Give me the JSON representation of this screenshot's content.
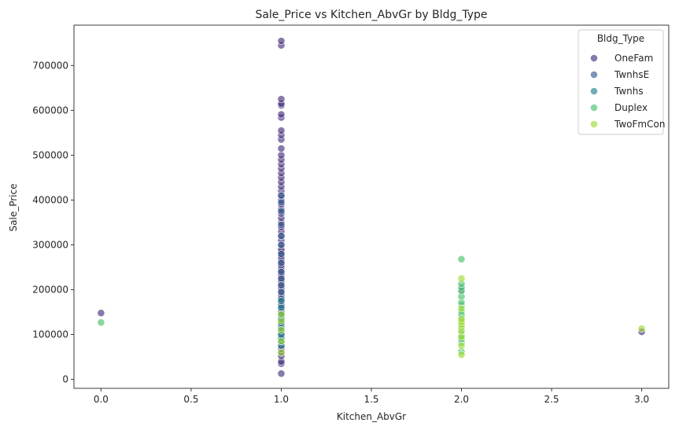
{
  "chart_data": {
    "type": "scatter",
    "title": "Sale_Price vs Kitchen_AbvGr by Bldg_Type",
    "xlabel": "Kitchen_AbvGr",
    "ylabel": "Sale_Price",
    "xlim": [
      -0.15,
      3.15
    ],
    "ylim": [
      -20000,
      790000
    ],
    "xticks": [
      0.0,
      0.5,
      1.0,
      1.5,
      2.0,
      2.5,
      3.0
    ],
    "xtick_labels": [
      "0.0",
      "0.5",
      "1.0",
      "1.5",
      "2.0",
      "2.5",
      "3.0"
    ],
    "yticks": [
      0,
      100000,
      200000,
      300000,
      400000,
      500000,
      600000,
      700000
    ],
    "ytick_labels": [
      "0",
      "100000",
      "200000",
      "300000",
      "400000",
      "500000",
      "600000",
      "700000"
    ],
    "grid": false,
    "legend": {
      "title": "Bldg_Type",
      "placement": "top-right"
    },
    "series": [
      {
        "name": "OneFam",
        "color": "#46327e",
        "points": [
          [
            0,
            148000
          ],
          [
            1,
            13000
          ],
          [
            1,
            35000
          ],
          [
            1,
            40000
          ],
          [
            1,
            52000
          ],
          [
            1,
            60000
          ],
          [
            1,
            68000
          ],
          [
            1,
            75000
          ],
          [
            1,
            82000
          ],
          [
            1,
            88000
          ],
          [
            1,
            95000
          ],
          [
            1,
            100000
          ],
          [
            1,
            105000
          ],
          [
            1,
            110000
          ],
          [
            1,
            115000
          ],
          [
            1,
            120000
          ],
          [
            1,
            125000
          ],
          [
            1,
            130000
          ],
          [
            1,
            135000
          ],
          [
            1,
            140000
          ],
          [
            1,
            145000
          ],
          [
            1,
            150000
          ],
          [
            1,
            155000
          ],
          [
            1,
            160000
          ],
          [
            1,
            165000
          ],
          [
            1,
            170000
          ],
          [
            1,
            175000
          ],
          [
            1,
            180000
          ],
          [
            1,
            185000
          ],
          [
            1,
            190000
          ],
          [
            1,
            195000
          ],
          [
            1,
            200000
          ],
          [
            1,
            205000
          ],
          [
            1,
            210000
          ],
          [
            1,
            215000
          ],
          [
            1,
            220000
          ],
          [
            1,
            225000
          ],
          [
            1,
            230000
          ],
          [
            1,
            235000
          ],
          [
            1,
            240000
          ],
          [
            1,
            245000
          ],
          [
            1,
            250000
          ],
          [
            1,
            255000
          ],
          [
            1,
            260000
          ],
          [
            1,
            265000
          ],
          [
            1,
            270000
          ],
          [
            1,
            275000
          ],
          [
            1,
            280000
          ],
          [
            1,
            285000
          ],
          [
            1,
            290000
          ],
          [
            1,
            300000
          ],
          [
            1,
            310000
          ],
          [
            1,
            320000
          ],
          [
            1,
            330000
          ],
          [
            1,
            340000
          ],
          [
            1,
            350000
          ],
          [
            1,
            360000
          ],
          [
            1,
            370000
          ],
          [
            1,
            380000
          ],
          [
            1,
            390000
          ],
          [
            1,
            400000
          ],
          [
            1,
            410000
          ],
          [
            1,
            420000
          ],
          [
            1,
            430000
          ],
          [
            1,
            440000
          ],
          [
            1,
            450000
          ],
          [
            1,
            460000
          ],
          [
            1,
            470000
          ],
          [
            1,
            480000
          ],
          [
            1,
            490000
          ],
          [
            1,
            500000
          ],
          [
            1,
            515000
          ],
          [
            1,
            535000
          ],
          [
            1,
            545000
          ],
          [
            1,
            555000
          ],
          [
            1,
            584000
          ],
          [
            1,
            591000
          ],
          [
            1,
            611000
          ],
          [
            1,
            615000
          ],
          [
            1,
            625000
          ],
          [
            1,
            745000
          ],
          [
            1,
            755000
          ],
          [
            2,
            200000
          ],
          [
            3,
            106000
          ]
        ]
      },
      {
        "name": "TwnhsE",
        "color": "#365c8d",
        "points": [
          [
            1,
            85000
          ],
          [
            1,
            110000
          ],
          [
            1,
            135000
          ],
          [
            1,
            150000
          ],
          [
            1,
            165000
          ],
          [
            1,
            180000
          ],
          [
            1,
            195000
          ],
          [
            1,
            210000
          ],
          [
            1,
            225000
          ],
          [
            1,
            240000
          ],
          [
            1,
            260000
          ],
          [
            1,
            280000
          ],
          [
            1,
            300000
          ],
          [
            1,
            320000
          ],
          [
            1,
            345000
          ],
          [
            1,
            375000
          ],
          [
            1,
            395000
          ],
          [
            1,
            410000
          ]
        ]
      },
      {
        "name": "Twnhs",
        "color": "#277f8e",
        "points": [
          [
            1,
            75000
          ],
          [
            1,
            85000
          ],
          [
            1,
            92000
          ],
          [
            1,
            100000
          ],
          [
            1,
            115000
          ],
          [
            1,
            125000
          ],
          [
            1,
            135000
          ],
          [
            1,
            145000
          ],
          [
            1,
            160000
          ],
          [
            1,
            175000
          ]
        ]
      },
      {
        "name": "Duplex",
        "color": "#4ac16d",
        "points": [
          [
            0,
            127000
          ],
          [
            2,
            62000
          ],
          [
            2,
            82000
          ],
          [
            2,
            90000
          ],
          [
            2,
            98000
          ],
          [
            2,
            105000
          ],
          [
            2,
            112000
          ],
          [
            2,
            118000
          ],
          [
            2,
            125000
          ],
          [
            2,
            130000
          ],
          [
            2,
            138000
          ],
          [
            2,
            145000
          ],
          [
            2,
            152000
          ],
          [
            2,
            165000
          ],
          [
            2,
            172000
          ],
          [
            2,
            185000
          ],
          [
            2,
            197000
          ],
          [
            2,
            205000
          ],
          [
            2,
            213000
          ],
          [
            2,
            268000
          ]
        ]
      },
      {
        "name": "TwoFmCon",
        "color": "#a0da39",
        "points": [
          [
            1,
            60000
          ],
          [
            1,
            85000
          ],
          [
            1,
            110000
          ],
          [
            1,
            130000
          ],
          [
            1,
            145000
          ],
          [
            2,
            55000
          ],
          [
            2,
            75000
          ],
          [
            2,
            95000
          ],
          [
            2,
            108000
          ],
          [
            2,
            116000
          ],
          [
            2,
            122000
          ],
          [
            2,
            128000
          ],
          [
            2,
            134000
          ],
          [
            2,
            158000
          ],
          [
            2,
            225000
          ],
          [
            3,
            113000
          ]
        ]
      }
    ]
  }
}
